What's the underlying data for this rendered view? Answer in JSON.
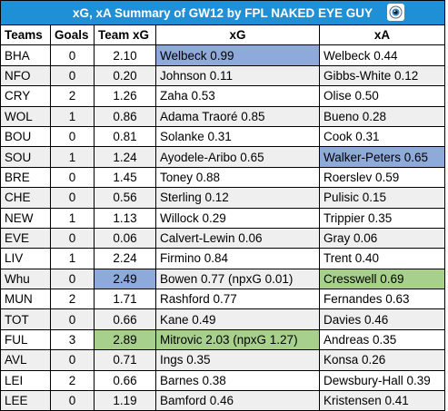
{
  "title": "xG, xA Summary of GW12 by FPL NAKED EYE GUY",
  "colors": {
    "header": "#1f8fd6",
    "highlight_blue": "#8eaadb",
    "highlight_green": "#a8d08d",
    "row_shade": "#efefef"
  },
  "columns": [
    "Teams",
    "Goals",
    "Team xG",
    "xG",
    "xA"
  ],
  "rows": [
    {
      "team": "BHA",
      "goals": "0",
      "team_xg": "2.10",
      "xg": "Welbeck 0.99",
      "xa": "Welbeck 0.44"
    },
    {
      "team": "NFO",
      "goals": "0",
      "team_xg": "0.20",
      "xg": "Johnson 0.11",
      "xa": "Gibbs-White 0.12"
    },
    {
      "team": "CRY",
      "goals": "2",
      "team_xg": "1.26",
      "xg": "Zaha 0.53",
      "xa": "Olise 0.50"
    },
    {
      "team": "WOL",
      "goals": "1",
      "team_xg": "0.86",
      "xg": "Adama Traoré 0.85",
      "xa": "Bueno 0.28"
    },
    {
      "team": "BOU",
      "goals": "0",
      "team_xg": "0.81",
      "xg": "Solanke 0.31",
      "xa": "Cook 0.31"
    },
    {
      "team": "SOU",
      "goals": "1",
      "team_xg": "1.24",
      "xg": "Ayodele-Aribo 0.65",
      "xa": "Walker-Peters 0.65"
    },
    {
      "team": "BRE",
      "goals": "0",
      "team_xg": "1.45",
      "xg": "Toney 0.88",
      "xa": "Roerslev 0.59"
    },
    {
      "team": "CHE",
      "goals": "0",
      "team_xg": "0.56",
      "xg": "Sterling 0.12",
      "xa": "Pulisic 0.15"
    },
    {
      "team": "NEW",
      "goals": "1",
      "team_xg": "1.13",
      "xg": "Willock 0.29",
      "xa": "Trippier 0.35"
    },
    {
      "team": "EVE",
      "goals": "0",
      "team_xg": "0.06",
      "xg": "Calvert-Lewin 0.06",
      "xa": "Gray 0.06"
    },
    {
      "team": "LIV",
      "goals": "1",
      "team_xg": "2.24",
      "xg": "Firmino 0.84",
      "xa": "Trent 0.40"
    },
    {
      "team": "Whu",
      "goals": "0",
      "team_xg": "2.49",
      "xg": "Bowen 0.77 (npxG 0.01)",
      "xa": "Cresswell 0.69"
    },
    {
      "team": "MUN",
      "goals": "2",
      "team_xg": "1.71",
      "xg": "Rashford 0.77",
      "xa": "Fernandes 0.63"
    },
    {
      "team": "TOT",
      "goals": "0",
      "team_xg": "0.66",
      "xg": "Kane 0.49",
      "xa": "Davies 0.46"
    },
    {
      "team": "FUL",
      "goals": "3",
      "team_xg": "2.89",
      "xg": "Mitrovic 2.03 (npxG 1.27)",
      "xa": "Andreas 0.35"
    },
    {
      "team": "AVL",
      "goals": "0",
      "team_xg": "0.71",
      "xg": "Ings 0.35",
      "xa": "Konsa 0.26"
    },
    {
      "team": "LEI",
      "goals": "2",
      "team_xg": "0.66",
      "xg": "Barnes 0.38",
      "xa": "Dewsbury-Hall 0.39"
    },
    {
      "team": "LEE",
      "goals": "0",
      "team_xg": "1.19",
      "xg": "Bamford 0.46",
      "xa": "Kristensen 0.41"
    }
  ],
  "highlights": [
    {
      "row": 0,
      "col": "xg",
      "color": "blue"
    },
    {
      "row": 5,
      "col": "xa",
      "color": "blue"
    },
    {
      "row": 11,
      "col": "team_xg",
      "color": "blue"
    },
    {
      "row": 11,
      "col": "xa",
      "color": "green"
    },
    {
      "row": 14,
      "col": "team_xg",
      "color": "green"
    },
    {
      "row": 14,
      "col": "xg",
      "color": "green"
    }
  ],
  "title_icon": "eye-icon"
}
